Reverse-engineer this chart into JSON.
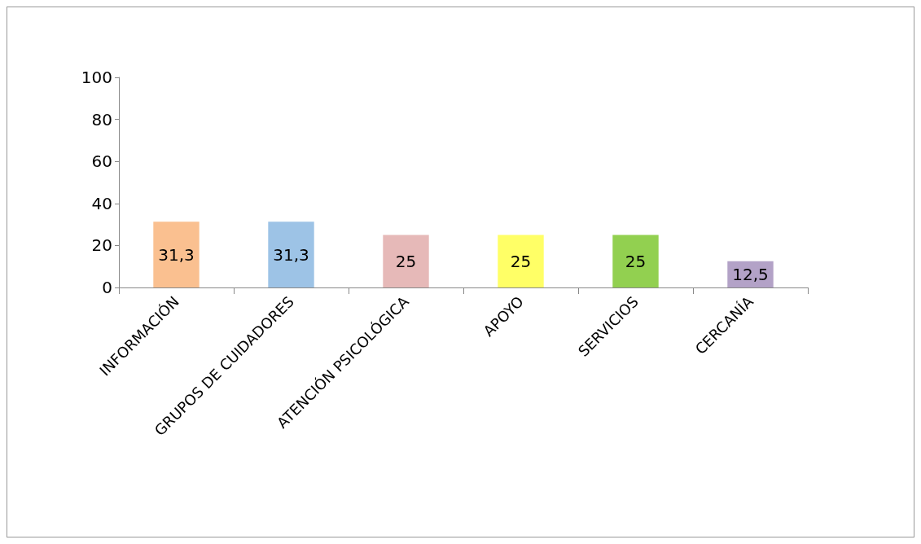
{
  "chart_data": {
    "type": "bar",
    "categories": [
      "INFORMACIÓN",
      "GRUPOS DE CUIDADORES",
      "ATENCIÓN PSICOLÓGICA",
      "APOYO",
      "SERVICIOS",
      "CERCANÍA"
    ],
    "values": [
      31.3,
      31.3,
      25,
      25,
      25,
      12.5
    ],
    "colors": [
      "#fac090",
      "#9dc3e6",
      "#e6b9b8",
      "#ffff66",
      "#92d050",
      "#b3a2c7"
    ],
    "ylim": [
      0,
      100
    ],
    "yticks": [
      0,
      20,
      40,
      60,
      80,
      100
    ],
    "value_labels": [
      "31,3",
      "31,3",
      "25",
      "25",
      "25",
      "12,5"
    ],
    "grid": false
  }
}
